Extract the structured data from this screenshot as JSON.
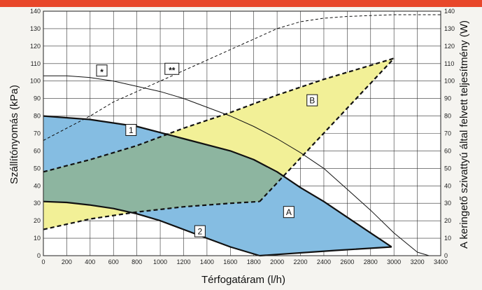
{
  "colors": {
    "top_bar": "#e8472a",
    "background": "#f5f4f0",
    "plot_bg": "#ffffff",
    "grid": "#333333",
    "region_a": "#85bde2",
    "region_b": "#f2f097",
    "region_overlap": "#8db5a0"
  },
  "chart_data": {
    "type": "line",
    "xlabel": "Térfogatáram (l/h)",
    "ylabel": "Szállítónyomás (kPa)",
    "y2label": "A keringető szivattyú által felvett teljesítmény (W)",
    "xlim": [
      0,
      3400
    ],
    "ylim": [
      0,
      140
    ],
    "y2lim": [
      0,
      140
    ],
    "x_ticks": [
      "0",
      "200",
      "400",
      "600",
      "800",
      "1000",
      "1200",
      "1400",
      "1600",
      "1800",
      "2000",
      "2200",
      "2400",
      "2600",
      "2800",
      "3000",
      "3200",
      "3400"
    ],
    "y_ticks": [
      "0",
      "10",
      "20",
      "30",
      "40",
      "50",
      "60",
      "70",
      "80",
      "90",
      "100",
      "110",
      "120",
      "130",
      "140"
    ],
    "y2_ticks": [
      "0",
      "10",
      "20",
      "30",
      "40",
      "50",
      "60",
      "70",
      "80",
      "90",
      "100",
      "110",
      "120",
      "130",
      "140"
    ],
    "grid": true,
    "regions": [
      {
        "label": "A",
        "polygon": [
          [
            0,
            80
          ],
          [
            400,
            78
          ],
          [
            800,
            74
          ],
          [
            1200,
            67
          ],
          [
            1600,
            60
          ],
          [
            1800,
            55
          ],
          [
            2000,
            48
          ],
          [
            2200,
            39
          ],
          [
            2400,
            31
          ],
          [
            2600,
            22
          ],
          [
            2800,
            13
          ],
          [
            2980,
            5
          ],
          [
            2500,
            3
          ],
          [
            1850,
            0
          ],
          [
            1600,
            5
          ],
          [
            1400,
            10
          ],
          [
            1200,
            15
          ],
          [
            1000,
            20
          ],
          [
            800,
            24
          ],
          [
            600,
            27
          ],
          [
            400,
            29
          ],
          [
            200,
            30.5
          ],
          [
            0,
            31
          ]
        ]
      },
      {
        "label": "B",
        "polygon": [
          [
            0,
            48
          ],
          [
            400,
            55
          ],
          [
            800,
            63
          ],
          [
            1200,
            73
          ],
          [
            1600,
            82
          ],
          [
            2000,
            92
          ],
          [
            2400,
            101
          ],
          [
            2800,
            109
          ],
          [
            3000,
            113
          ],
          [
            1850,
            31
          ],
          [
            1600,
            30
          ],
          [
            1200,
            28
          ],
          [
            800,
            25
          ],
          [
            400,
            21
          ],
          [
            0,
            15
          ]
        ]
      }
    ],
    "series": [
      {
        "name": "1",
        "style": "solid-bold",
        "x": [
          0,
          400,
          800,
          1200,
          1600,
          1800,
          2000,
          2200,
          2400,
          2600,
          2800,
          2980
        ],
        "y": [
          80,
          78,
          74,
          67,
          60,
          55,
          48,
          39,
          31,
          22,
          13,
          5
        ]
      },
      {
        "name": "2",
        "style": "solid-bold",
        "x": [
          0,
          200,
          400,
          600,
          800,
          1000,
          1200,
          1400,
          1600,
          1850
        ],
        "y": [
          31,
          30.5,
          29,
          27,
          24,
          20,
          15,
          10,
          5,
          0
        ]
      },
      {
        "name": "",
        "style": "dashed-bold",
        "x": [
          0,
          400,
          800,
          1200,
          1600,
          2000,
          2400,
          2800,
          3000
        ],
        "y": [
          48,
          55,
          63,
          73,
          82,
          92,
          101,
          109,
          113
        ]
      },
      {
        "name": "",
        "style": "dashed-bold",
        "x": [
          0,
          400,
          800,
          1200,
          1600,
          1850
        ],
        "y": [
          15,
          21,
          25,
          28,
          30,
          31
        ]
      },
      {
        "name": "",
        "style": "dashed-bold",
        "x": [
          1850,
          3000
        ],
        "y": [
          31,
          113
        ]
      },
      {
        "name": "",
        "style": "solid-bold",
        "x": [
          1850,
          2500,
          2980
        ],
        "y": [
          0,
          3,
          5
        ]
      },
      {
        "name": "*",
        "style": "thin",
        "x": [
          0,
          200,
          400,
          600,
          800,
          1000,
          1200,
          1400,
          1600,
          1800,
          2000,
          2200,
          2400,
          2600,
          2800,
          3000,
          3200,
          3300
        ],
        "y": [
          103,
          103,
          102,
          100,
          97,
          94,
          90,
          85,
          80,
          74,
          67,
          59,
          50,
          38,
          26,
          13,
          2,
          0
        ]
      },
      {
        "name": "**",
        "style": "thin-dashed",
        "x": [
          0,
          200,
          400,
          600,
          800,
          1000,
          1200,
          1400,
          1600,
          1800,
          2000,
          2200,
          2400,
          2600,
          2800,
          3000,
          3200,
          3400
        ],
        "y": [
          66,
          73,
          80,
          88,
          94,
          100,
          106,
          112,
          118,
          124,
          130,
          134,
          136,
          137,
          137.5,
          138,
          138,
          138
        ]
      }
    ],
    "labels": [
      {
        "text": "1",
        "x": 750,
        "y": 72
      },
      {
        "text": "2",
        "x": 1340,
        "y": 14
      },
      {
        "text": "*",
        "x": 500,
        "y": 106
      },
      {
        "text": "**",
        "x": 1100,
        "y": 107
      },
      {
        "text": "A",
        "x": 2100,
        "y": 25
      },
      {
        "text": "B",
        "x": 2300,
        "y": 89
      }
    ]
  }
}
